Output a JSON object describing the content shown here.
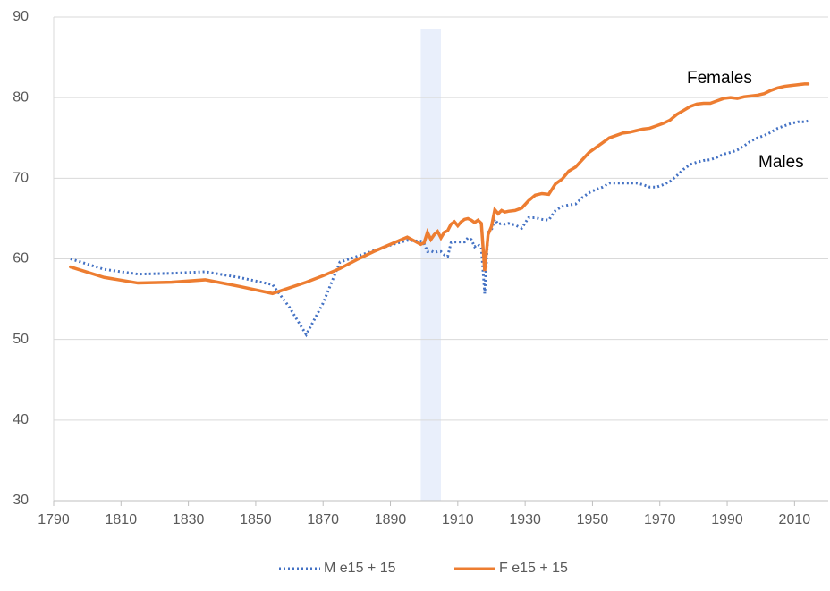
{
  "chart_data": {
    "type": "line",
    "x": [
      1795,
      1805,
      1815,
      1825,
      1835,
      1845,
      1855,
      1860,
      1865,
      1870,
      1875,
      1880,
      1885,
      1890,
      1895,
      1899,
      1900,
      1901,
      1902,
      1903,
      1904,
      1905,
      1906,
      1907,
      1908,
      1909,
      1910,
      1911,
      1912,
      1913,
      1914,
      1915,
      1916,
      1917,
      1918,
      1919,
      1920,
      1921,
      1922,
      1923,
      1924,
      1925,
      1927,
      1929,
      1931,
      1933,
      1935,
      1937,
      1939,
      1941,
      1943,
      1945,
      1947,
      1949,
      1951,
      1953,
      1955,
      1957,
      1959,
      1961,
      1963,
      1965,
      1967,
      1969,
      1971,
      1973,
      1975,
      1977,
      1979,
      1981,
      1983,
      1985,
      1987,
      1989,
      1991,
      1993,
      1995,
      1997,
      1999,
      2001,
      2003,
      2005,
      2007,
      2009,
      2011,
      2013,
      2014
    ],
    "series": [
      {
        "name": "M e15 + 15",
        "color": "#4472c4",
        "style": "dotted",
        "values": [
          60.0,
          58.7,
          58.1,
          58.2,
          58.4,
          57.7,
          56.8,
          54.0,
          50.6,
          54.5,
          59.6,
          60.3,
          61.0,
          61.7,
          62.3,
          62.2,
          61.9,
          60.9,
          61.0,
          60.8,
          60.9,
          60.9,
          60.5,
          60.3,
          62.0,
          62.1,
          62.1,
          62.1,
          62.1,
          62.6,
          62.4,
          61.5,
          61.8,
          61.4,
          55.7,
          63.3,
          63.6,
          64.9,
          64.3,
          64.4,
          64.3,
          64.4,
          64.2,
          63.8,
          65.1,
          65.1,
          64.9,
          64.8,
          66.0,
          66.5,
          66.7,
          66.8,
          67.6,
          68.2,
          68.6,
          68.9,
          69.4,
          69.4,
          69.4,
          69.4,
          69.4,
          69.2,
          68.9,
          68.9,
          69.2,
          69.6,
          70.3,
          71.1,
          71.7,
          72.0,
          72.2,
          72.3,
          72.6,
          73.0,
          73.2,
          73.5,
          74.0,
          74.6,
          75.0,
          75.3,
          75.7,
          76.2,
          76.5,
          76.8,
          77.0,
          77.0,
          77.1
        ]
      },
      {
        "name": "F e15 + 15",
        "color": "#ed7d31",
        "style": "solid",
        "values": [
          59.0,
          57.7,
          57.0,
          57.1,
          57.4,
          56.6,
          55.7,
          56.4,
          57.1,
          57.9,
          58.8,
          59.9,
          60.9,
          61.8,
          62.7,
          61.8,
          62.0,
          63.3,
          62.4,
          63.0,
          63.4,
          62.6,
          63.3,
          63.5,
          64.3,
          64.6,
          64.1,
          64.6,
          64.9,
          65.0,
          64.8,
          64.5,
          64.8,
          64.4,
          58.5,
          63.0,
          64.0,
          66.1,
          65.6,
          66.0,
          65.8,
          65.9,
          66.0,
          66.3,
          67.2,
          67.9,
          68.1,
          68.0,
          69.3,
          69.9,
          70.9,
          71.4,
          72.3,
          73.2,
          73.8,
          74.4,
          75.0,
          75.3,
          75.6,
          75.7,
          75.9,
          76.1,
          76.2,
          76.5,
          76.8,
          77.2,
          77.9,
          78.4,
          78.9,
          79.2,
          79.3,
          79.3,
          79.6,
          79.9,
          80.0,
          79.9,
          80.1,
          80.2,
          80.3,
          80.5,
          80.9,
          81.2,
          81.4,
          81.5,
          81.6,
          81.7,
          81.7
        ]
      }
    ],
    "annotations": [
      "Females",
      "Males"
    ],
    "shaded_span": [
      1899,
      1905
    ],
    "xlim": [
      1790,
      2020
    ],
    "xticks": [
      1790,
      1810,
      1830,
      1850,
      1870,
      1890,
      1910,
      1930,
      1950,
      1970,
      1990,
      2010
    ],
    "ylim": [
      30,
      90
    ],
    "yticks": [
      30,
      40,
      50,
      60,
      70,
      80,
      90
    ],
    "grid": true,
    "legend": "bottom"
  }
}
